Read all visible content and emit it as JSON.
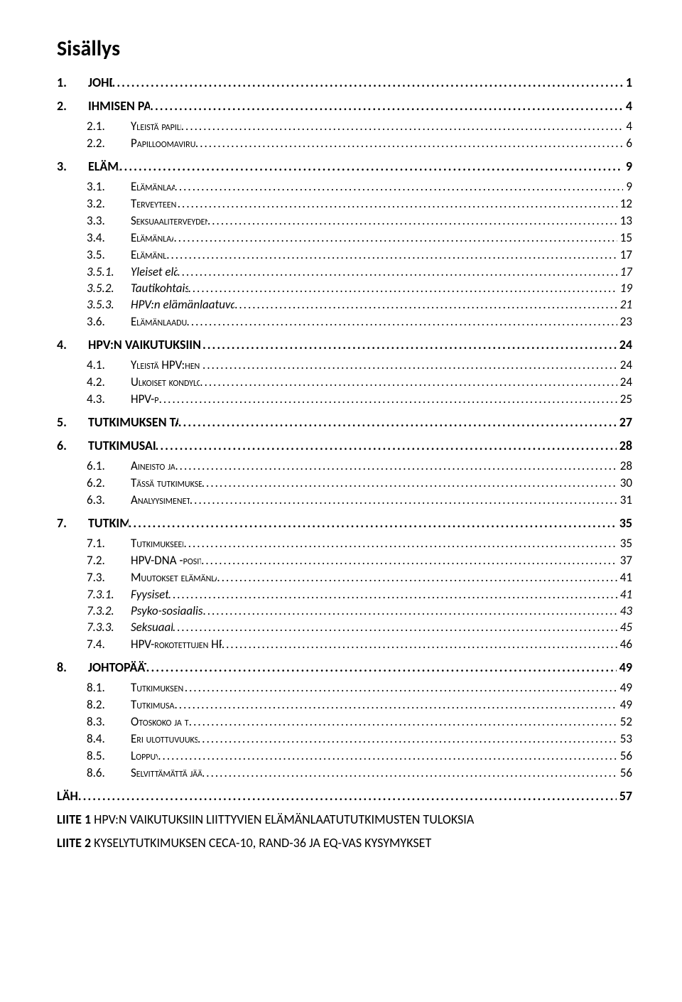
{
  "title": "Sisällys",
  "leader_char": ".",
  "entries": [
    {
      "level": 1,
      "num": "1.",
      "label": "JOHDANTO",
      "page": "1"
    },
    {
      "level": 1,
      "num": "2.",
      "label": "IHMISEN PAPILLOOMAVIRUKSISTA",
      "page": "4"
    },
    {
      "level": 2,
      "num": "2.1.",
      "label": "Yleistä papilloomavirusinfektioista",
      "page": "4"
    },
    {
      "level": 2,
      "num": "2.2.",
      "label": "Papilloomavirusinfektioiden seuranta ja hoito",
      "page": "6"
    },
    {
      "level": 1,
      "num": "3.",
      "label": "ELÄMÄNLAATU",
      "page": "9"
    },
    {
      "level": 2,
      "num": "3.1.",
      "label": "Elämänlaadun määritelmistä",
      "page": "9"
    },
    {
      "level": 2,
      "num": "3.2.",
      "label": "Terveyteen liittyvä elämänlaatu",
      "page": "12"
    },
    {
      "level": 2,
      "num": "3.3.",
      "label": "Seksuaaliterveyden yhteys elämänlaatuun ja hyvinvointiin",
      "page": "13"
    },
    {
      "level": 2,
      "num": "3.4.",
      "label": "Elämänlaadun mittaamisesta",
      "page": "15"
    },
    {
      "level": 2,
      "num": "3.5.",
      "label": "Elämänlaadun mittarit",
      "page": "17"
    },
    {
      "level": 3,
      "num": "3.5.1.",
      "label": "Yleiset elämänlaatumittarit",
      "page": "17"
    },
    {
      "level": 3,
      "num": "3.5.2.",
      "label": "Tautikohtaiset elämänlaatumittarit",
      "page": "19"
    },
    {
      "level": 3,
      "num": "3.5.3.",
      "label": "HPV:n elämänlaatuvaikutusten mittaamiseen käytettyjä muita mittareita",
      "page": "21"
    },
    {
      "level": 2,
      "num": "3.6.",
      "label": "Elämänlaadun mittareiden arvioinnista",
      "page": "23"
    },
    {
      "level": 1,
      "num": "4.",
      "label": "HPV:N VAIKUTUKSIIN LIITTYVIEN ELÄMÄNLAATUTUTKIMUSTEN TULOKSIA",
      "page": "24"
    },
    {
      "level": 2,
      "num": "4.1.",
      "label": "Yleistä HPV:hen liittyvistä elämänlaatututkimuksista",
      "page": "24"
    },
    {
      "level": 2,
      "num": "4.2.",
      "label": "Ulkoiset kondyloomat ja kohdunkaulan muutokset",
      "page": "24"
    },
    {
      "level": 2,
      "num": "4.3.",
      "label": "HPV-positiivisuus",
      "page": "25"
    },
    {
      "level": 1,
      "num": "5.",
      "label": "TUTKIMUKSEN TAVOITTEET JA TUTKIMUSKYSYMYKSET",
      "page": "27"
    },
    {
      "level": 1,
      "num": "6.",
      "label": "TUTKIMUSAINEISTO JA -MENETELMÄT",
      "page": "28"
    },
    {
      "level": 2,
      "num": "6.1.",
      "label": "Aineisto ja eettiset kysymykset",
      "page": "28"
    },
    {
      "level": 2,
      "num": "6.2.",
      "label": "Tässä tutkimuksessa käytetyt elämänlaadun mittarit",
      "page": "30"
    },
    {
      "level": 2,
      "num": "6.3.",
      "label": "Analyysimenetelmät ja käytetyt muuttujat",
      "page": "31"
    },
    {
      "level": 1,
      "num": "7.",
      "label": "TUTKIMUSTULOKSET",
      "page": "35"
    },
    {
      "level": 2,
      "num": "7.1.",
      "label": "Tutkimukseen osallistuneiden kuvaus",
      "page": "35"
    },
    {
      "level": 2,
      "num": "7.2.",
      "label": "HPV-DNA -positiivisuuden vaikutus elämänlaatuun",
      "page": "37"
    },
    {
      "level": 2,
      "num": "7.3.",
      "label": "Muutokset elämänlaadussa HPV-DNA positiivisuuden pitkittyessä",
      "page": "41"
    },
    {
      "level": 3,
      "num": "7.3.1.",
      "label": "Fyysiset ulottuvuudet",
      "page": "41"
    },
    {
      "level": 3,
      "num": "7.3.2.",
      "label": "Psyko-sosiaaliset/emotionaaliset ulottuvuudet",
      "page": "43"
    },
    {
      "level": 3,
      "num": "7.3.3.",
      "label": "Seksuaalinen ulottuvuus",
      "page": "45"
    },
    {
      "level": 2,
      "num": "7.4.",
      "label": "HPV-rokotettujen HPV-DNA -positiivisuuden vaikutus elämänlaatuun",
      "page": "46"
    },
    {
      "level": 1,
      "num": "8.",
      "label": "JOHTOPÄÄTÖKSET JA POHDINTA",
      "page": "49"
    },
    {
      "level": 2,
      "num": "8.1.",
      "label": "Tutkimuksen tavoitteet ja päätulokset",
      "page": "49"
    },
    {
      "level": 2,
      "num": "8.2.",
      "label": "Tutkimusasetelma ja eettisyys",
      "page": "49"
    },
    {
      "level": 2,
      "num": "8.3.",
      "label": "Otoskoko ja tutkittavien valikoituneisuus",
      "page": "52"
    },
    {
      "level": 2,
      "num": "8.4.",
      "label": "Eri ulottuvuuksien merkityksestä elämänlaatuun",
      "page": "53"
    },
    {
      "level": 2,
      "num": "8.5.",
      "label": "Loppuyhteenveto",
      "page": "56"
    },
    {
      "level": 2,
      "num": "8.6.",
      "label": "Selvittämättä jääneet kysymykset ja jatkotutkimukset",
      "page": "56"
    },
    {
      "level": 0,
      "num": "",
      "label": "LÄHTEET:",
      "page": "57"
    }
  ],
  "appendices": [
    {
      "bold": "LIITE 1",
      "label": "HPV:N VAIKUTUKSIIN LIITTYVIEN ELÄMÄNLAATUTUTKIMUSTEN TULOKSIA"
    },
    {
      "bold": "LIITE 2",
      "label": "KYSELYTUTKIMUKSEN CECA-10, RAND-36 JA EQ-VAS KYSYMYKSET"
    }
  ],
  "colors": {
    "text": "#000000",
    "background": "#ffffff"
  }
}
